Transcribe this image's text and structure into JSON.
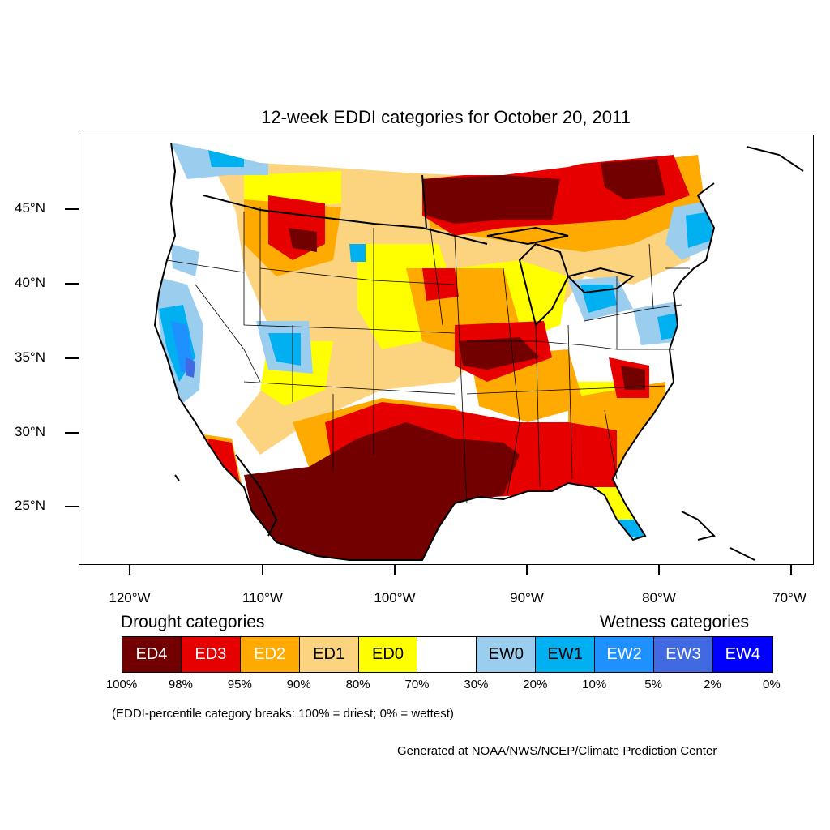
{
  "title": "12-week EDDI categories for October 20, 2011",
  "latitude_labels": [
    "45°N",
    "40°N",
    "35°N",
    "30°N",
    "25°N"
  ],
  "longitude_labels": [
    "120°W",
    "110°W",
    "100°W",
    "90°W",
    "80°W",
    "70°W"
  ],
  "legend": {
    "drought_heading": "Drought categories",
    "wetness_heading": "Wetness categories",
    "categories": [
      {
        "label": "ED4",
        "color": "#730000",
        "text_color": "#ffffff"
      },
      {
        "label": "ED3",
        "color": "#e60000",
        "text_color": "#ffffff"
      },
      {
        "label": "ED2",
        "color": "#ffaa00",
        "text_color": "#ffffff"
      },
      {
        "label": "ED1",
        "color": "#fcd37f",
        "text_color": "#000000"
      },
      {
        "label": "ED0",
        "color": "#ffff00",
        "text_color": "#000000"
      },
      {
        "label": "",
        "color": "#ffffff",
        "text_color": "#000000"
      },
      {
        "label": "EW0",
        "color": "#9bcdef",
        "text_color": "#000000"
      },
      {
        "label": "EW1",
        "color": "#00b0f0",
        "text_color": "#000000"
      },
      {
        "label": "EW2",
        "color": "#1e90ff",
        "text_color": "#ffffff"
      },
      {
        "label": "EW3",
        "color": "#4169e1",
        "text_color": "#ffffff"
      },
      {
        "label": "EW4",
        "color": "#0000ff",
        "text_color": "#ffffff"
      }
    ],
    "percentile_breaks": [
      "100%",
      "98%",
      "95%",
      "90%",
      "80%",
      "70%",
      "30%",
      "20%",
      "10%",
      "5%",
      "2%",
      "0%"
    ]
  },
  "note": "(EDDI-percentile category breaks: 100% = driest; 0% = wettest)",
  "credit": "Generated at NOAA/NWS/NCEP/Climate Prediction Center"
}
